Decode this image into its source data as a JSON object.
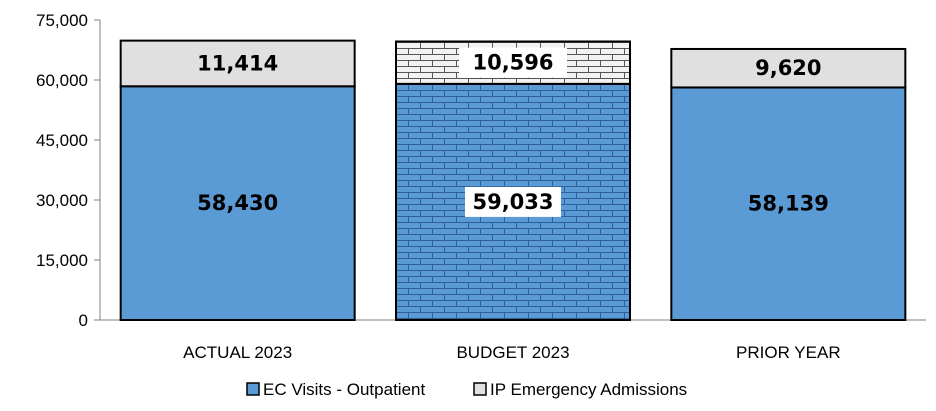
{
  "chart_data": {
    "type": "bar",
    "stacked": true,
    "categories": [
      "ACTUAL 2023",
      "BUDGET 2023",
      "PRIOR YEAR"
    ],
    "series": [
      {
        "name": "EC Visits - Outpatient",
        "values": [
          58430,
          59033,
          58139
        ],
        "labels": [
          "58,430",
          "59,033",
          "58,139"
        ],
        "color": "#5b9bd5",
        "pattern": "solid"
      },
      {
        "name": "IP Emergency Admissions",
        "values": [
          11414,
          10596,
          9620
        ],
        "labels": [
          "11,414",
          "10,596",
          "9,620"
        ],
        "color": "#e0e0e0",
        "pattern": "solid"
      }
    ],
    "budget_pattern": "brick",
    "ylim": [
      0,
      75000
    ],
    "yticks": [
      0,
      15000,
      30000,
      45000,
      60000,
      75000
    ],
    "ytick_labels": [
      "0",
      "15,000",
      "30,000",
      "45,000",
      "60,000",
      "75,000"
    ],
    "grid": false,
    "legend_position": "bottom",
    "title": "",
    "xlabel": "",
    "ylabel": ""
  }
}
